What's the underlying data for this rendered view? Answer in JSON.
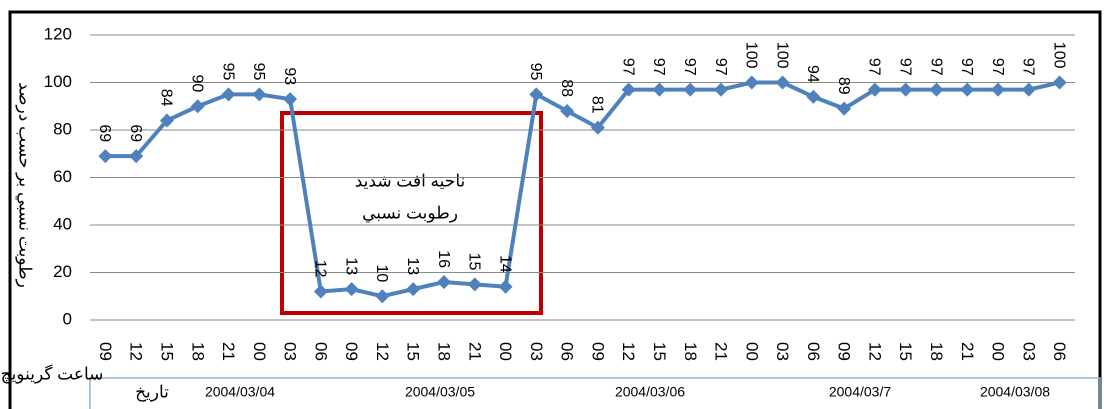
{
  "chart_data": {
    "type": "line",
    "y_label": "رطوبت نسبي بر حسب درصد",
    "x_label": "ساعت گرينويچ",
    "date_row_label": "تاريخ",
    "dates": [
      "2004/03/04",
      "2004/03/05",
      "2004/03/06",
      "2004/03/7",
      "2004/03/08"
    ],
    "annotations": [
      "ناحيه افت شديد",
      "رطوبت نسبي"
    ],
    "categories": [
      "09",
      "12",
      "15",
      "18",
      "21",
      "00",
      "03",
      "06",
      "09",
      "12",
      "15",
      "18",
      "21",
      "00",
      "03",
      "06",
      "09",
      "12",
      "15",
      "18",
      "21",
      "00",
      "03",
      "06",
      "09",
      "12",
      "15",
      "18",
      "21",
      "00",
      "03",
      "06"
    ],
    "series": [
      {
        "name": "رطوبت نسبي",
        "color": "#4f81bd",
        "values": [
          69,
          69,
          84,
          90,
          95,
          95,
          93,
          12,
          13,
          10,
          13,
          16,
          15,
          14,
          95,
          88,
          81,
          97,
          97,
          97,
          97,
          100,
          100,
          94,
          89,
          97,
          97,
          97,
          97,
          97,
          97,
          100
        ]
      }
    ],
    "ylim": [
      0,
      120
    ],
    "yticks": [
      0,
      20,
      40,
      60,
      80,
      100,
      120
    ],
    "grid": true
  }
}
